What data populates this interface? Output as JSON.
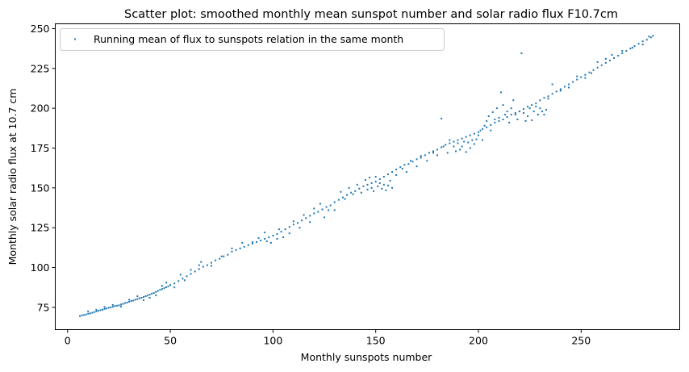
{
  "chart_data": {
    "type": "scatter",
    "title": "Scatter plot: smoothed monthly mean sunspot number and solar radio flux F10.7cm",
    "xlabel": "Monthly sunspots number",
    "ylabel": "Monthly solar radio flux at 10.7 cm",
    "xlim": [
      -6,
      298
    ],
    "ylim": [
      61,
      253
    ],
    "xticks": [
      0,
      50,
      100,
      150,
      200,
      250
    ],
    "yticks": [
      75,
      100,
      125,
      150,
      175,
      200,
      225,
      250
    ],
    "grid": false,
    "legend": {
      "placement": "top-left",
      "entries": [
        "Running mean of flux to sunspots relation in the same month"
      ]
    },
    "series": [
      {
        "name": "Running mean of flux to sunspots relation in the same month",
        "color": "#1f77b4",
        "points": [
          [
            6,
            69.5
          ],
          [
            7,
            70
          ],
          [
            8,
            70.2
          ],
          [
            9,
            70.5
          ],
          [
            10,
            71
          ],
          [
            11,
            71.2
          ],
          [
            12,
            71.6
          ],
          [
            13,
            72
          ],
          [
            14,
            72.5
          ],
          [
            15,
            72.8
          ],
          [
            16,
            73.2
          ],
          [
            17,
            73.5
          ],
          [
            18,
            74
          ],
          [
            19,
            74.3
          ],
          [
            20,
            74.7
          ],
          [
            21,
            75
          ],
          [
            22,
            75.3
          ],
          [
            23,
            75.8
          ],
          [
            24,
            76
          ],
          [
            25,
            76.3
          ],
          [
            26,
            76.8
          ],
          [
            27,
            77.2
          ],
          [
            28,
            77.7
          ],
          [
            29,
            78
          ],
          [
            30,
            78.5
          ],
          [
            31,
            79
          ],
          [
            32,
            79.3
          ],
          [
            33,
            79.8
          ],
          [
            34,
            80.2
          ],
          [
            35,
            80.7
          ],
          [
            36,
            81
          ],
          [
            37,
            81.5
          ],
          [
            38,
            82
          ],
          [
            39,
            82.4
          ],
          [
            40,
            83
          ],
          [
            41,
            83.6
          ],
          [
            42,
            84
          ],
          [
            43,
            84.7
          ],
          [
            44,
            85.3
          ],
          [
            45,
            86
          ],
          [
            46,
            86.5
          ],
          [
            47,
            87
          ],
          [
            48,
            87.6
          ],
          [
            49,
            88.2
          ],
          [
            50,
            89
          ],
          [
            52,
            90
          ],
          [
            54,
            91.5
          ],
          [
            56,
            93
          ],
          [
            58,
            94.5
          ],
          [
            60,
            96
          ],
          [
            62,
            97.5
          ],
          [
            64,
            99
          ],
          [
            66,
            100.5
          ],
          [
            68,
            101.5
          ],
          [
            70,
            103
          ],
          [
            72,
            104.5
          ],
          [
            74,
            105.5
          ],
          [
            76,
            107
          ],
          [
            78,
            108
          ],
          [
            80,
            110
          ],
          [
            82,
            111
          ],
          [
            84,
            112
          ],
          [
            86,
            113
          ],
          [
            88,
            114
          ],
          [
            90,
            115
          ],
          [
            92,
            116
          ],
          [
            94,
            117
          ],
          [
            96,
            118
          ],
          [
            98,
            119
          ],
          [
            100,
            120
          ],
          [
            102,
            121
          ],
          [
            104,
            122.5
          ],
          [
            106,
            124
          ],
          [
            108,
            125.5
          ],
          [
            110,
            127
          ],
          [
            112,
            128
          ],
          [
            114,
            129.5
          ],
          [
            116,
            131
          ],
          [
            118,
            132.5
          ],
          [
            120,
            134
          ],
          [
            122,
            135
          ],
          [
            124,
            136.5
          ],
          [
            126,
            138
          ],
          [
            128,
            139
          ],
          [
            130,
            141
          ],
          [
            132,
            142.5
          ],
          [
            134,
            144
          ],
          [
            136,
            145.5
          ],
          [
            138,
            147
          ],
          [
            140,
            148
          ],
          [
            142,
            149.5
          ],
          [
            144,
            151
          ],
          [
            146,
            152
          ],
          [
            148,
            153
          ],
          [
            150,
            154
          ],
          [
            152,
            155.5
          ],
          [
            154,
            157
          ],
          [
            156,
            158.5
          ],
          [
            158,
            160
          ],
          [
            160,
            161.5
          ],
          [
            162,
            163
          ],
          [
            164,
            164.5
          ],
          [
            166,
            165
          ],
          [
            168,
            166.5
          ],
          [
            170,
            168
          ],
          [
            172,
            169
          ],
          [
            174,
            170.5
          ],
          [
            176,
            172
          ],
          [
            178,
            173
          ],
          [
            180,
            174
          ],
          [
            182,
            175.5
          ],
          [
            184,
            177
          ],
          [
            186,
            178
          ],
          [
            188,
            179
          ],
          [
            190,
            180
          ],
          [
            192,
            181
          ],
          [
            194,
            182
          ],
          [
            196,
            183
          ],
          [
            198,
            184
          ],
          [
            200,
            185
          ],
          [
            202,
            187
          ],
          [
            204,
            188
          ],
          [
            206,
            189.5
          ],
          [
            208,
            191
          ],
          [
            210,
            192
          ],
          [
            212,
            193
          ],
          [
            214,
            194.5
          ],
          [
            216,
            196
          ],
          [
            218,
            197
          ],
          [
            220,
            198
          ],
          [
            222,
            199.5
          ],
          [
            224,
            201
          ],
          [
            226,
            202
          ],
          [
            228,
            203
          ],
          [
            230,
            205
          ],
          [
            232,
            206.5
          ],
          [
            234,
            207.5
          ],
          [
            236,
            209
          ],
          [
            238,
            210.5
          ],
          [
            240,
            212
          ],
          [
            242,
            213.5
          ],
          [
            244,
            215
          ],
          [
            246,
            216.5
          ],
          [
            248,
            218
          ],
          [
            250,
            219.5
          ],
          [
            252,
            221
          ],
          [
            254,
            222.5
          ],
          [
            256,
            224
          ],
          [
            258,
            225.5
          ],
          [
            260,
            227
          ],
          [
            262,
            228.5
          ],
          [
            264,
            230
          ],
          [
            266,
            231.5
          ],
          [
            268,
            233
          ],
          [
            270,
            234.5
          ],
          [
            272,
            236
          ],
          [
            274,
            237.5
          ],
          [
            276,
            239
          ],
          [
            278,
            240.5
          ],
          [
            280,
            242
          ],
          [
            282,
            243
          ],
          [
            284,
            244.5
          ],
          [
            285,
            245.5
          ],
          [
            10,
            72.5
          ],
          [
            14,
            73.5
          ],
          [
            18,
            75.2
          ],
          [
            22,
            76.5
          ],
          [
            26,
            75.5
          ],
          [
            30,
            79.8
          ],
          [
            34,
            82
          ],
          [
            37,
            79.5
          ],
          [
            40,
            81
          ],
          [
            43,
            82.5
          ],
          [
            46,
            88.5
          ],
          [
            48,
            90.5
          ],
          [
            52,
            87.5
          ],
          [
            55,
            95.5
          ],
          [
            57,
            92
          ],
          [
            60,
            98.5
          ],
          [
            64,
            101.5
          ],
          [
            65,
            103.5
          ],
          [
            70,
            101
          ],
          [
            75,
            107
          ],
          [
            80,
            112
          ],
          [
            85,
            115.5
          ],
          [
            90,
            116
          ],
          [
            93,
            118.5
          ],
          [
            96,
            122
          ],
          [
            97,
            116.5
          ],
          [
            99,
            115.5
          ],
          [
            102,
            118
          ],
          [
            103,
            124
          ],
          [
            105,
            119
          ],
          [
            108,
            121.5
          ],
          [
            110,
            129
          ],
          [
            113,
            125
          ],
          [
            115,
            133
          ],
          [
            118,
            128.5
          ],
          [
            120,
            137
          ],
          [
            123,
            140
          ],
          [
            125,
            131.5
          ],
          [
            127,
            136
          ],
          [
            130,
            136
          ],
          [
            133,
            147.5
          ],
          [
            135,
            143
          ],
          [
            137,
            150
          ],
          [
            139,
            146
          ],
          [
            141,
            152
          ],
          [
            143,
            147
          ],
          [
            145,
            155
          ],
          [
            146,
            149
          ],
          [
            147,
            156.5
          ],
          [
            148,
            150
          ],
          [
            149,
            148
          ],
          [
            150,
            157
          ],
          [
            151,
            151
          ],
          [
            152,
            153
          ],
          [
            153,
            149.5
          ],
          [
            154,
            152
          ],
          [
            155,
            148.5
          ],
          [
            156,
            151.5
          ],
          [
            157,
            154.5
          ],
          [
            158,
            150
          ],
          [
            160,
            158
          ],
          [
            163,
            162
          ],
          [
            165,
            160
          ],
          [
            167,
            167
          ],
          [
            170,
            163.5
          ],
          [
            172,
            170
          ],
          [
            175,
            167
          ],
          [
            178,
            172
          ],
          [
            180,
            170.5
          ],
          [
            182,
            193.5
          ],
          [
            183,
            176
          ],
          [
            185,
            172
          ],
          [
            186,
            180
          ],
          [
            188,
            176
          ],
          [
            189,
            173
          ],
          [
            190,
            178
          ],
          [
            191,
            174
          ],
          [
            192,
            176
          ],
          [
            193,
            179
          ],
          [
            194,
            172.5
          ],
          [
            195,
            178.5
          ],
          [
            196,
            175
          ],
          [
            197,
            180
          ],
          [
            198,
            177.5
          ],
          [
            199,
            180.5
          ],
          [
            200,
            183
          ],
          [
            201,
            186
          ],
          [
            202,
            180
          ],
          [
            203,
            189
          ],
          [
            204,
            192
          ],
          [
            205,
            195
          ],
          [
            206,
            186
          ],
          [
            207,
            197.5
          ],
          [
            208,
            193
          ],
          [
            209,
            200
          ],
          [
            210,
            194
          ],
          [
            211,
            210
          ],
          [
            212,
            202
          ],
          [
            213,
            196
          ],
          [
            214,
            198
          ],
          [
            215,
            191
          ],
          [
            216,
            200
          ],
          [
            217,
            205
          ],
          [
            218,
            196
          ],
          [
            219,
            193
          ],
          [
            220,
            198
          ],
          [
            221,
            234.5
          ],
          [
            222,
            197
          ],
          [
            223,
            192
          ],
          [
            224,
            195
          ],
          [
            225,
            200
          ],
          [
            226,
            192.5
          ],
          [
            227,
            198
          ],
          [
            228,
            201
          ],
          [
            229,
            196
          ],
          [
            230,
            200
          ],
          [
            231,
            198
          ],
          [
            232,
            196
          ],
          [
            233,
            199
          ],
          [
            234,
            206
          ],
          [
            236,
            215
          ],
          [
            240,
            211
          ],
          [
            244,
            213
          ],
          [
            248,
            220
          ],
          [
            252,
            219
          ],
          [
            255,
            222
          ],
          [
            258,
            229
          ],
          [
            262,
            231
          ],
          [
            265,
            233.5
          ],
          [
            270,
            236
          ],
          [
            275,
            238
          ],
          [
            280,
            240
          ],
          [
            283,
            245
          ]
        ]
      }
    ]
  }
}
